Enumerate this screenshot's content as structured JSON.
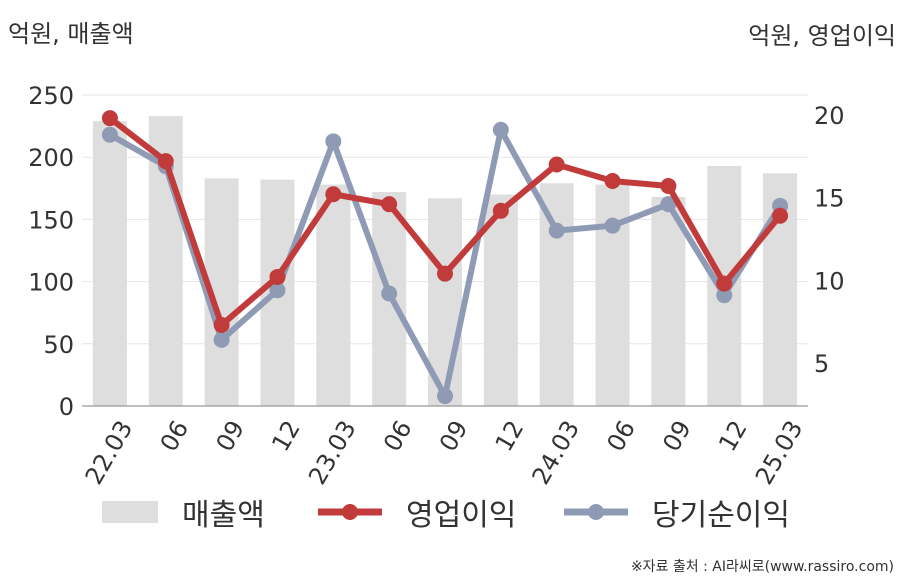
{
  "units": {
    "left": "억원, 매출액",
    "right": "억원, 영업이익"
  },
  "source": "※자료 출처 : AI라씨로(www.rassiro.com)",
  "legend": {
    "revenue": "매출액",
    "operating_profit": "영업이익",
    "net_income": "당기순이익"
  },
  "colors": {
    "revenue": "#dedede",
    "operating_profit": "#c23b3b",
    "net_income": "#8f9bb5",
    "grid": "#e6e6e6",
    "axis": "#999999"
  },
  "chart_data": {
    "type": "bar",
    "categories": [
      "22.03",
      "06",
      "09",
      "12",
      "23.03",
      "06",
      "09",
      "12",
      "24.03",
      "06",
      "09",
      "12",
      "25.03"
    ],
    "y_left": {
      "ticks": [
        0,
        50,
        100,
        150,
        200,
        250
      ],
      "lim": [
        0,
        250
      ]
    },
    "y_right": {
      "ticks": [
        5,
        10,
        15,
        20
      ],
      "lim": [
        2.4,
        21.2
      ]
    },
    "series": [
      {
        "name": "매출액",
        "type": "bar",
        "axis": "left",
        "values": [
          229,
          233,
          183,
          182,
          178,
          172,
          167,
          170,
          179,
          178,
          168,
          193,
          187
        ]
      },
      {
        "name": "영업이익",
        "type": "line",
        "axis": "right",
        "values": [
          19.8,
          17.2,
          7.3,
          10.2,
          15.2,
          14.6,
          10.4,
          14.2,
          17.0,
          16.0,
          15.7,
          9.8,
          13.9
        ]
      },
      {
        "name": "당기순이익",
        "type": "line",
        "axis": "right",
        "values": [
          18.8,
          16.9,
          6.4,
          9.4,
          18.4,
          9.2,
          3.0,
          19.1,
          13.0,
          13.3,
          14.6,
          9.1,
          14.5
        ]
      }
    ]
  }
}
